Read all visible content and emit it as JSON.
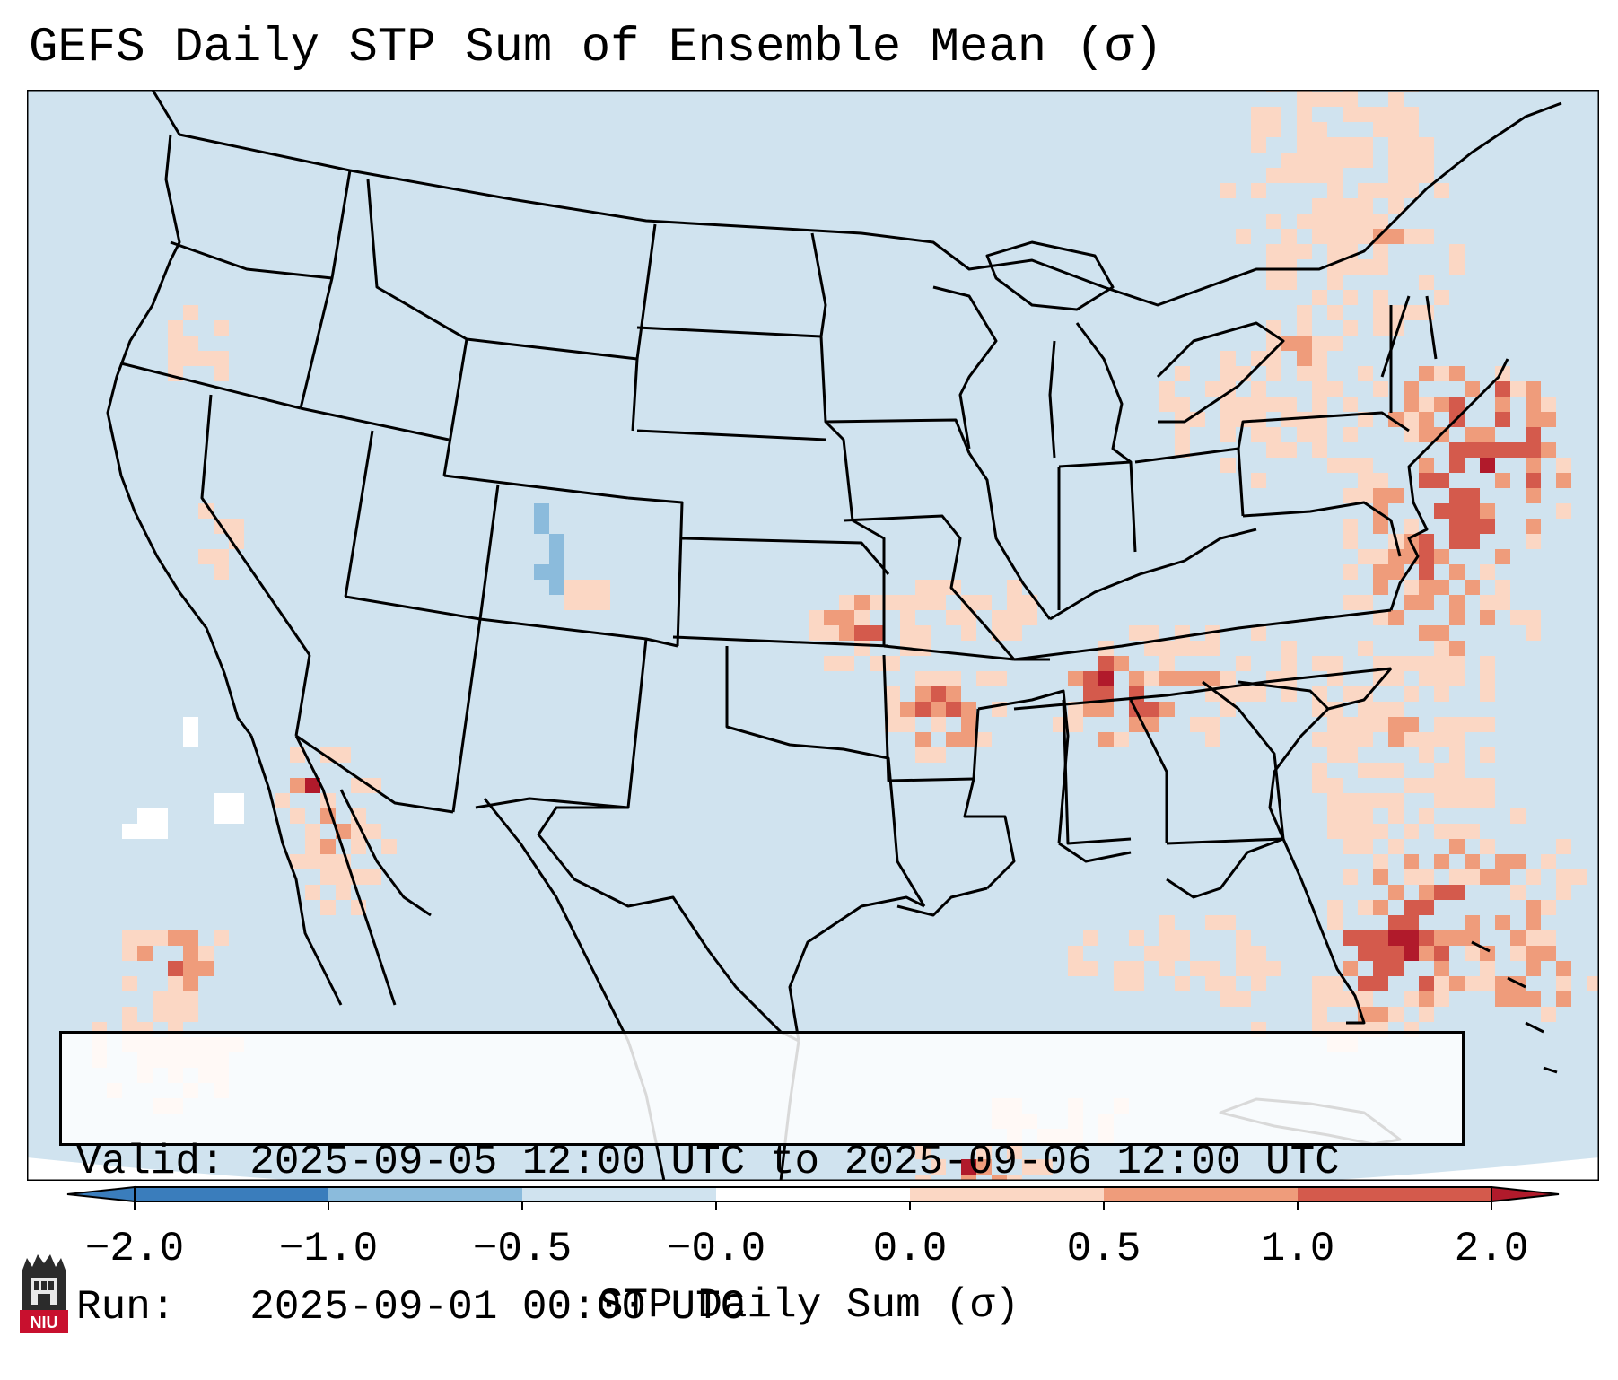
{
  "title": "GEFS Daily STP Sum of Ensemble Mean (σ)",
  "info": {
    "valid_label": "Valid:",
    "valid_value": "2025-09-05 12:00 UTC to 2025-09-06 12:00 UTC",
    "run_label": "Run:",
    "run_value": "2025-09-01 00:00 UTC"
  },
  "colorbar": {
    "title": "STP Daily Sum (σ)",
    "ticks": [
      "−2.0",
      "−1.0",
      "−0.5",
      "−0.0",
      "0.0",
      "0.5",
      "1.0",
      "2.0"
    ],
    "colors": [
      "#3a7dbc",
      "#8bbbdc",
      "#d0e3ef",
      "#ffffff",
      "#fbd7c4",
      "#ef9c7b",
      "#d45a4c",
      "#b11a2b"
    ]
  },
  "map": {
    "background_color": "#d0e3ef",
    "anomaly_regions": [
      {
        "name": "Mid-Atlantic / Northeast coast",
        "level": "2.0"
      },
      {
        "name": "Tennessee Valley / Alabama",
        "level": "1.0"
      },
      {
        "name": "Ozarks / Arkansas",
        "level": "1.0"
      },
      {
        "name": "Florida and western Atlantic",
        "level": "2.0"
      },
      {
        "name": "Baja California / Gulf of California",
        "level": "1.0"
      },
      {
        "name": "Colorado Rockies",
        "level": "-0.5"
      }
    ]
  },
  "logo": {
    "text": "NIU"
  }
}
